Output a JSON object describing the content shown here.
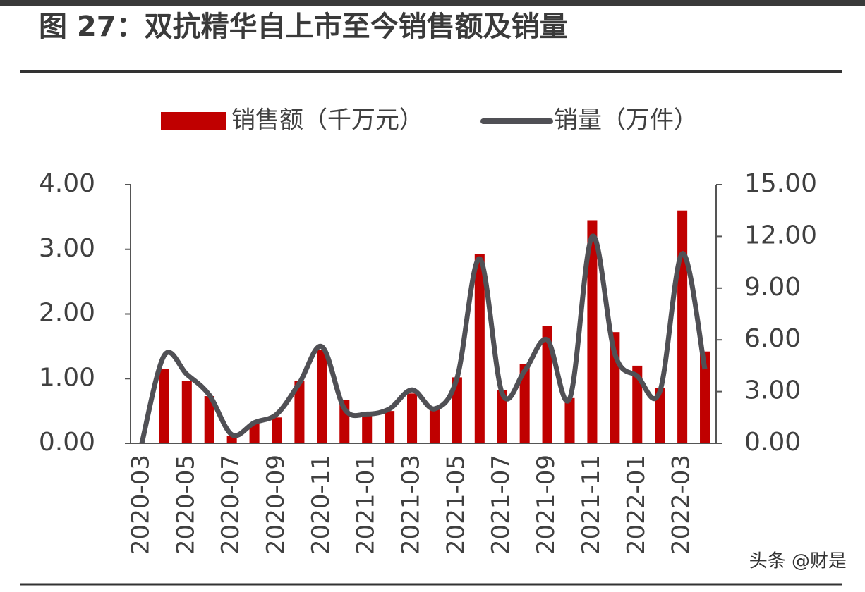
{
  "chart_data": {
    "type": "bar_line",
    "title": "图 27：双抗精华自上市至今销售额及销量",
    "categories": [
      "2020-03",
      null,
      "2020-05",
      null,
      "2020-07",
      null,
      "2020-09",
      null,
      "2020-11",
      null,
      "2021-01",
      null,
      "2021-03",
      null,
      "2021-05",
      null,
      "2021-07",
      null,
      "2021-09",
      null,
      "2021-11",
      null,
      "2022-01",
      null,
      "2022-03",
      null
    ],
    "series": [
      {
        "name": "销售额（千万元）",
        "type": "bar",
        "color": "#c00000",
        "values": [
          0,
          1.15,
          0.97,
          0.73,
          0.12,
          0.3,
          0.4,
          0.97,
          1.45,
          0.67,
          0.45,
          0.5,
          0.77,
          0.55,
          1.02,
          2.93,
          0.82,
          1.23,
          1.82,
          0.7,
          3.45,
          1.72,
          1.2,
          0.85,
          3.6,
          1.42
        ]
      },
      {
        "name": "销量（万件）",
        "type": "line",
        "axis": "y2",
        "color": "#505055",
        "values": [
          0,
          5.1,
          4.0,
          2.8,
          0.5,
          1.2,
          1.7,
          3.5,
          5.6,
          2.0,
          1.7,
          2.0,
          3.1,
          2.0,
          3.8,
          10.7,
          2.9,
          4.2,
          6.0,
          2.6,
          12.0,
          5.2,
          3.9,
          3.0,
          11.0,
          4.3
        ]
      }
    ],
    "ylim": [
      0,
      4
    ],
    "yticks": [
      {
        "value": 0,
        "label": "0.00"
      },
      {
        "value": 1,
        "label": "1.00"
      },
      {
        "value": 2,
        "label": "2.00"
      },
      {
        "value": 3,
        "label": "3.00"
      },
      {
        "value": 4,
        "label": "4.00"
      }
    ],
    "y2lim": [
      0,
      15
    ],
    "y2ticks": [
      {
        "value": 0,
        "label": "0.00"
      },
      {
        "value": 3,
        "label": "3.00"
      },
      {
        "value": 6,
        "label": "6.00"
      },
      {
        "value": 9,
        "label": "9.00"
      },
      {
        "value": 12,
        "label": "12.00"
      },
      {
        "value": 15,
        "label": "15.00"
      }
    ],
    "legend": "top",
    "watermark": "头条 @财是"
  }
}
